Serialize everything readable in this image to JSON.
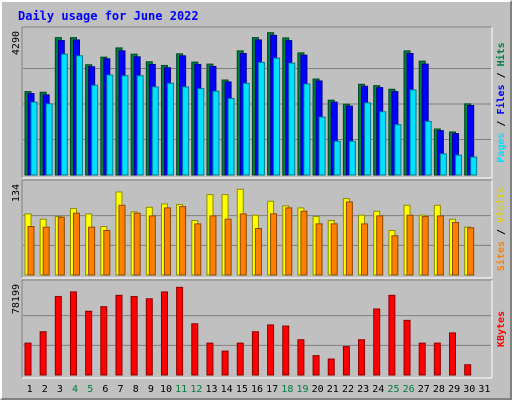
{
  "chart_data": {
    "type": "bar",
    "title": "Daily usage for June 2022",
    "categories": [
      "1",
      "2",
      "3",
      "4",
      "5",
      "6",
      "7",
      "8",
      "9",
      "10",
      "11",
      "12",
      "13",
      "14",
      "15",
      "16",
      "17",
      "18",
      "19",
      "20",
      "21",
      "22",
      "23",
      "24",
      "25",
      "26",
      "27",
      "28",
      "29",
      "30",
      "31"
    ],
    "weekend_days": [
      "4",
      "5",
      "11",
      "12",
      "18",
      "19",
      "25",
      "26"
    ],
    "panels": [
      {
        "id": "hits-files-pages",
        "ylabel_max": "4290",
        "ymax": 4290,
        "side_label_parts": [
          "Pages",
          " / ",
          "Files",
          " / ",
          "Hits"
        ],
        "series": [
          {
            "name": "Hits",
            "color": "#008040",
            "values": [
              2520,
              2500,
              4150,
              4150,
              3330,
              3560,
              3840,
              3650,
              3420,
              3310,
              3660,
              3410,
              3350,
              2870,
              3750,
              4150,
              4300,
              4140,
              3690,
              2900,
              2260,
              2140,
              2740,
              2700,
              2590,
              3750,
              3440,
              1390,
              1300,
              2150,
              0
            ]
          },
          {
            "name": "Files",
            "color": "#0000ff",
            "values": [
              2460,
              2420,
              4060,
              4080,
              3270,
              3510,
              3750,
              3570,
              3340,
              3240,
              3600,
              3340,
              3280,
              2810,
              3670,
              4080,
              4220,
              4060,
              3620,
              2840,
              2200,
              2080,
              2680,
              2640,
              2520,
              3670,
              3350,
              1340,
              1250,
              2100,
              0
            ]
          },
          {
            "name": "Pages",
            "color": "#00e0ff",
            "values": [
              2200,
              2150,
              3650,
              3600,
              2710,
              3020,
              3000,
              3000,
              2660,
              2770,
              2660,
              2610,
              2530,
              2310,
              2770,
              3400,
              3530,
              3380,
              2750,
              1750,
              1020,
              1020,
              2180,
              1910,
              1520,
              2570,
              1620,
              640,
              600,
              540,
              0
            ]
          }
        ]
      },
      {
        "id": "visits-sites",
        "ylabel_max": "134",
        "ymax": 134,
        "side_label_parts": [
          "Sites",
          " / ",
          "Visits"
        ],
        "series": [
          {
            "name": "Visits",
            "color": "#ffff00",
            "values": [
              92,
              84,
              88,
              100,
              92,
              73,
              125,
              95,
              102,
              107,
              106,
              82,
              121,
              121,
              129,
              90,
              111,
              104,
              101,
              88,
              82,
              115,
              90,
              96,
              67,
              105,
              90,
              105,
              84,
              72,
              0
            ]
          },
          {
            "name": "Sites",
            "color": "#ff8000",
            "values": [
              73,
              72,
              87,
              93,
              72,
              67,
              105,
              93,
              89,
              101,
              103,
              77,
              89,
              84,
              92,
              70,
              92,
              101,
              96,
              77,
              77,
              110,
              77,
              89,
              59,
              90,
              88,
              89,
              79,
              71,
              0
            ]
          }
        ]
      },
      {
        "id": "kbytes",
        "ylabel_max": "78199",
        "ymax": 78199,
        "side_label_parts": [
          "KBytes"
        ],
        "series": [
          {
            "name": "KBytes",
            "color": "#ff0000",
            "values": [
              28000,
              38000,
              69000,
              73000,
              56000,
              60000,
              70000,
              69000,
              67000,
              73000,
              77000,
              45000,
              28000,
              21000,
              28000,
              38000,
              44000,
              43000,
              31000,
              17000,
              14000,
              25000,
              31000,
              58000,
              70000,
              48000,
              28000,
              28000,
              37000,
              9000,
              0
            ]
          }
        ]
      }
    ]
  }
}
